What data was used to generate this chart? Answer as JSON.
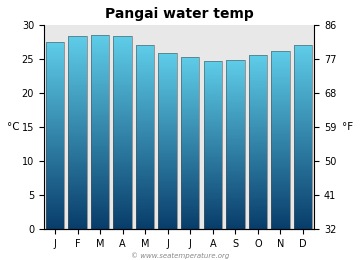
{
  "title": "Pangai water temp",
  "months": [
    "J",
    "F",
    "M",
    "A",
    "M",
    "J",
    "J",
    "A",
    "S",
    "O",
    "N",
    "D"
  ],
  "values_c": [
    27.5,
    28.3,
    28.5,
    28.3,
    27.0,
    25.8,
    25.3,
    24.7,
    24.8,
    25.5,
    26.2,
    27.0
  ],
  "ylim_c": [
    0,
    30
  ],
  "yticks_c": [
    0,
    5,
    10,
    15,
    20,
    25,
    30
  ],
  "yticks_f": [
    32,
    41,
    50,
    59,
    68,
    77,
    86
  ],
  "ylabel_left": "°C",
  "ylabel_right": "°F",
  "bar_color_top": "#5ecce8",
  "bar_color_bottom": "#083d6a",
  "background_color": "#e8e8e8",
  "title_fontsize": 10,
  "tick_fontsize": 7,
  "label_fontsize": 7.5,
  "watermark": "© www.seatemperature.org",
  "bar_width": 0.82,
  "fig_width": 3.6,
  "fig_height": 2.6
}
